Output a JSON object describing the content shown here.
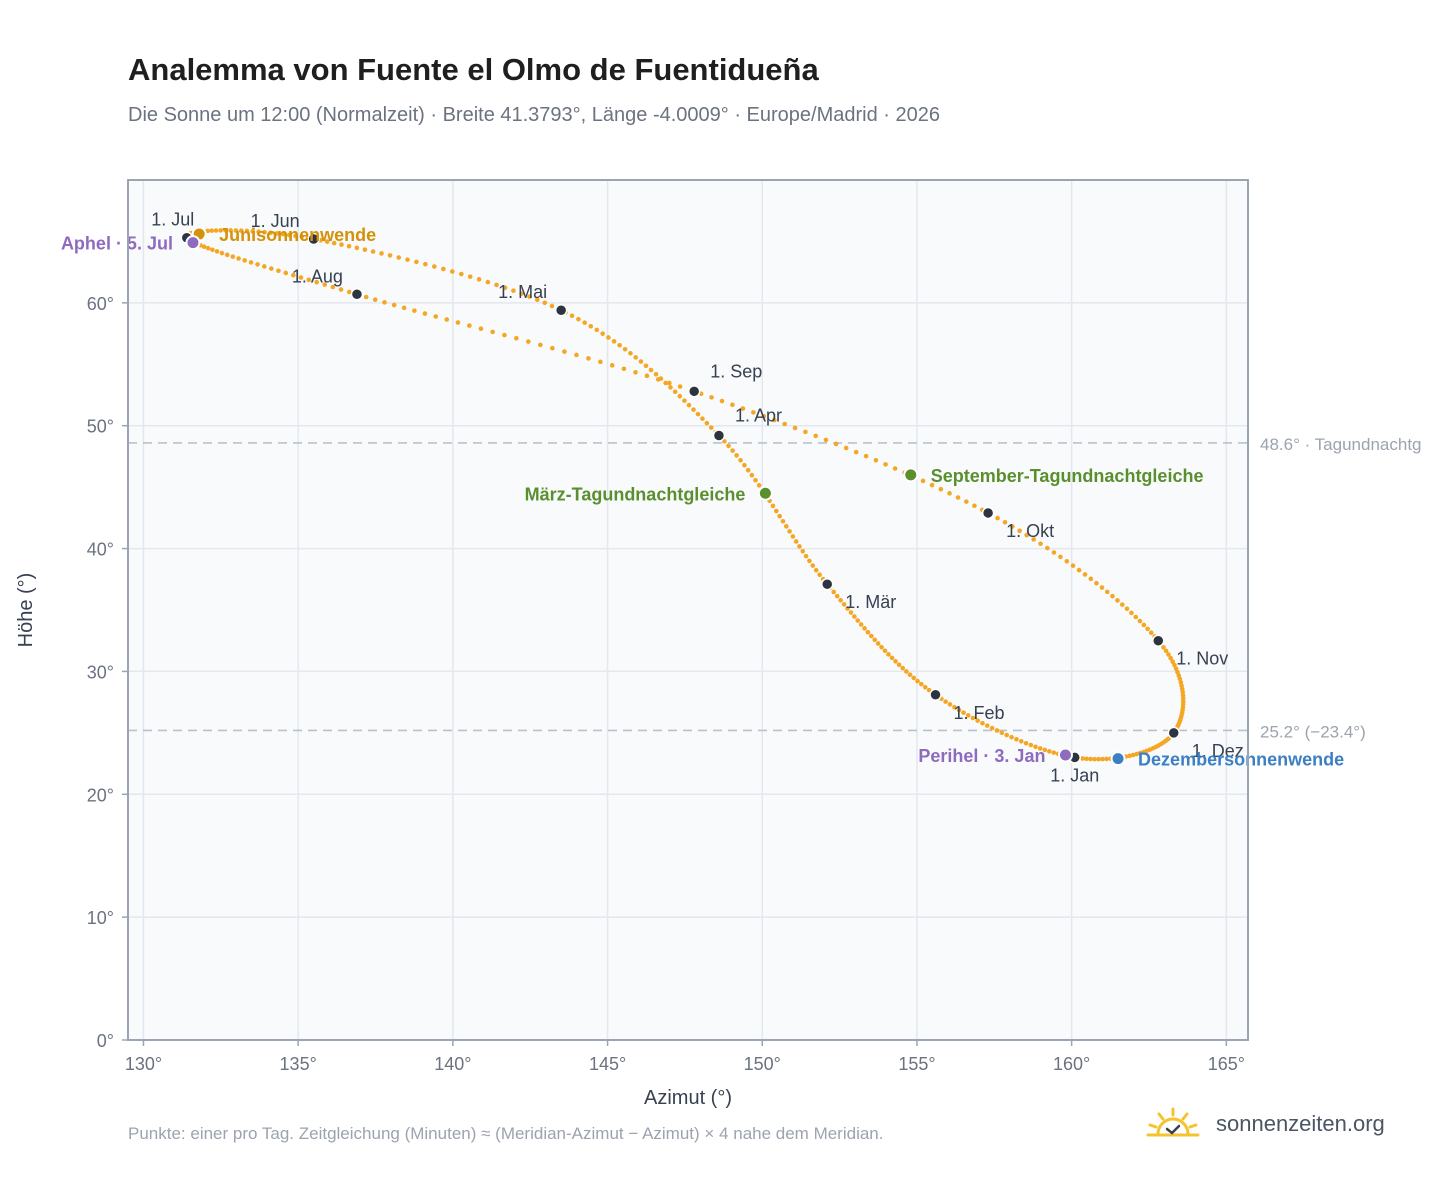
{
  "title": "Analemma von Fuente el Olmo de Fuentidueña",
  "subtitle": "Die Sonne um 12:00 (Normalzeit) · Breite 41.3793°, Länge -4.0009° · Europe/Madrid · 2026",
  "footnote": "Punkte: einer pro Tag. Zeitgleichung (Minuten) ≈ (Meridian-Azimut − Azimut) × 4 nahe dem Meridian.",
  "brand": {
    "name": "sonnenzeiten.org",
    "icon": "sun-check-logo-icon"
  },
  "colors": {
    "curve": "#f5a623",
    "month_point": "#2d3340",
    "solstice_june": "#d4920a",
    "solstice_december": "#3b7fc4",
    "equinox": "#5a8f2e",
    "apsis": "#8e6bbf",
    "reference_line": "#b8c2cf",
    "plot_background": "#f8fafc",
    "axis": "#9aa5b4"
  },
  "chart_data": {
    "type": "scatter",
    "xlabel": "Azimut (°)",
    "ylabel": "Höhe (°)",
    "xlim": [
      129.5,
      165.7
    ],
    "ylim": [
      0,
      70
    ],
    "xticks": [
      "130°",
      "135°",
      "140°",
      "145°",
      "150°",
      "155°",
      "160°",
      "165°"
    ],
    "yticks": [
      "0°",
      "10°",
      "20°",
      "30°",
      "40°",
      "50°",
      "60°"
    ],
    "grid": true,
    "curve_knots": [
      {
        "date": "1. Jan",
        "az": 160.1,
        "alt": 23.0
      },
      {
        "date": "1. Feb",
        "az": 155.6,
        "alt": 28.1
      },
      {
        "date": "1. Mär",
        "az": 152.1,
        "alt": 37.1
      },
      {
        "date": "1. Apr",
        "az": 148.6,
        "alt": 49.2
      },
      {
        "date": "1. Mai",
        "az": 143.5,
        "alt": 59.4
      },
      {
        "date": "1. Jun",
        "az": 135.5,
        "alt": 65.2
      },
      {
        "date": "1. Jul",
        "az": 131.4,
        "alt": 65.3
      },
      {
        "date": "1. Aug",
        "az": 136.9,
        "alt": 60.7
      },
      {
        "date": "1. Sep",
        "az": 147.8,
        "alt": 52.8
      },
      {
        "date": "1. Okt",
        "az": 157.3,
        "alt": 42.9
      },
      {
        "date": "1. Nov",
        "az": 162.8,
        "alt": 32.5
      },
      {
        "date": "1. Dez",
        "az": 163.3,
        "alt": 25.0
      }
    ],
    "month_markers": [
      {
        "label": "1. Jan",
        "az": 160.1,
        "alt": 23.0,
        "pos": "below"
      },
      {
        "label": "1. Feb",
        "az": 155.6,
        "alt": 28.1,
        "pos": "below-right"
      },
      {
        "label": "1. Mär",
        "az": 152.1,
        "alt": 37.1,
        "pos": "below-right"
      },
      {
        "label": "1. Apr",
        "az": 148.6,
        "alt": 49.2,
        "pos": "above-right"
      },
      {
        "label": "1. Mai",
        "az": 143.5,
        "alt": 59.4,
        "pos": "above-left"
      },
      {
        "label": "1. Jun",
        "az": 135.5,
        "alt": 65.2,
        "pos": "above-left"
      },
      {
        "label": "1. Jul",
        "az": 131.4,
        "alt": 65.3,
        "pos": "above"
      },
      {
        "label": "1. Aug",
        "az": 136.9,
        "alt": 60.7,
        "pos": "above-left"
      },
      {
        "label": "1. Sep",
        "az": 147.8,
        "alt": 52.8,
        "pos": "above-right"
      },
      {
        "label": "1. Okt",
        "az": 157.3,
        "alt": 42.9,
        "pos": "below-right"
      },
      {
        "label": "1. Nov",
        "az": 162.8,
        "alt": 32.5,
        "pos": "below-right"
      },
      {
        "label": "1. Dez",
        "az": 163.3,
        "alt": 25.0,
        "pos": "below-right"
      }
    ],
    "events": [
      {
        "label": "Junisonnenwende",
        "az": 131.8,
        "alt": 65.6,
        "color_key": "solstice_june",
        "pos": "right"
      },
      {
        "label": "Dezembersonnenwende",
        "az": 161.5,
        "alt": 22.9,
        "color_key": "solstice_december",
        "pos": "right"
      },
      {
        "label": "März-Tagundnachtgleiche",
        "az": 150.1,
        "alt": 44.5,
        "color_key": "equinox",
        "pos": "left"
      },
      {
        "label": "September-Tagundnachtgleiche",
        "az": 154.8,
        "alt": 46.0,
        "color_key": "equinox",
        "pos": "right"
      },
      {
        "label": "Aphel · 5. Jul",
        "az": 131.6,
        "alt": 64.9,
        "color_key": "apsis",
        "pos": "left"
      },
      {
        "label": "Perihel · 3. Jan",
        "az": 159.8,
        "alt": 23.2,
        "color_key": "apsis",
        "pos": "left"
      }
    ],
    "reference_lines": [
      {
        "alt": 48.6,
        "label": "48.6° · Tagundnachtg"
      },
      {
        "alt": 25.2,
        "label": "25.2° (−23.4°)"
      }
    ]
  }
}
